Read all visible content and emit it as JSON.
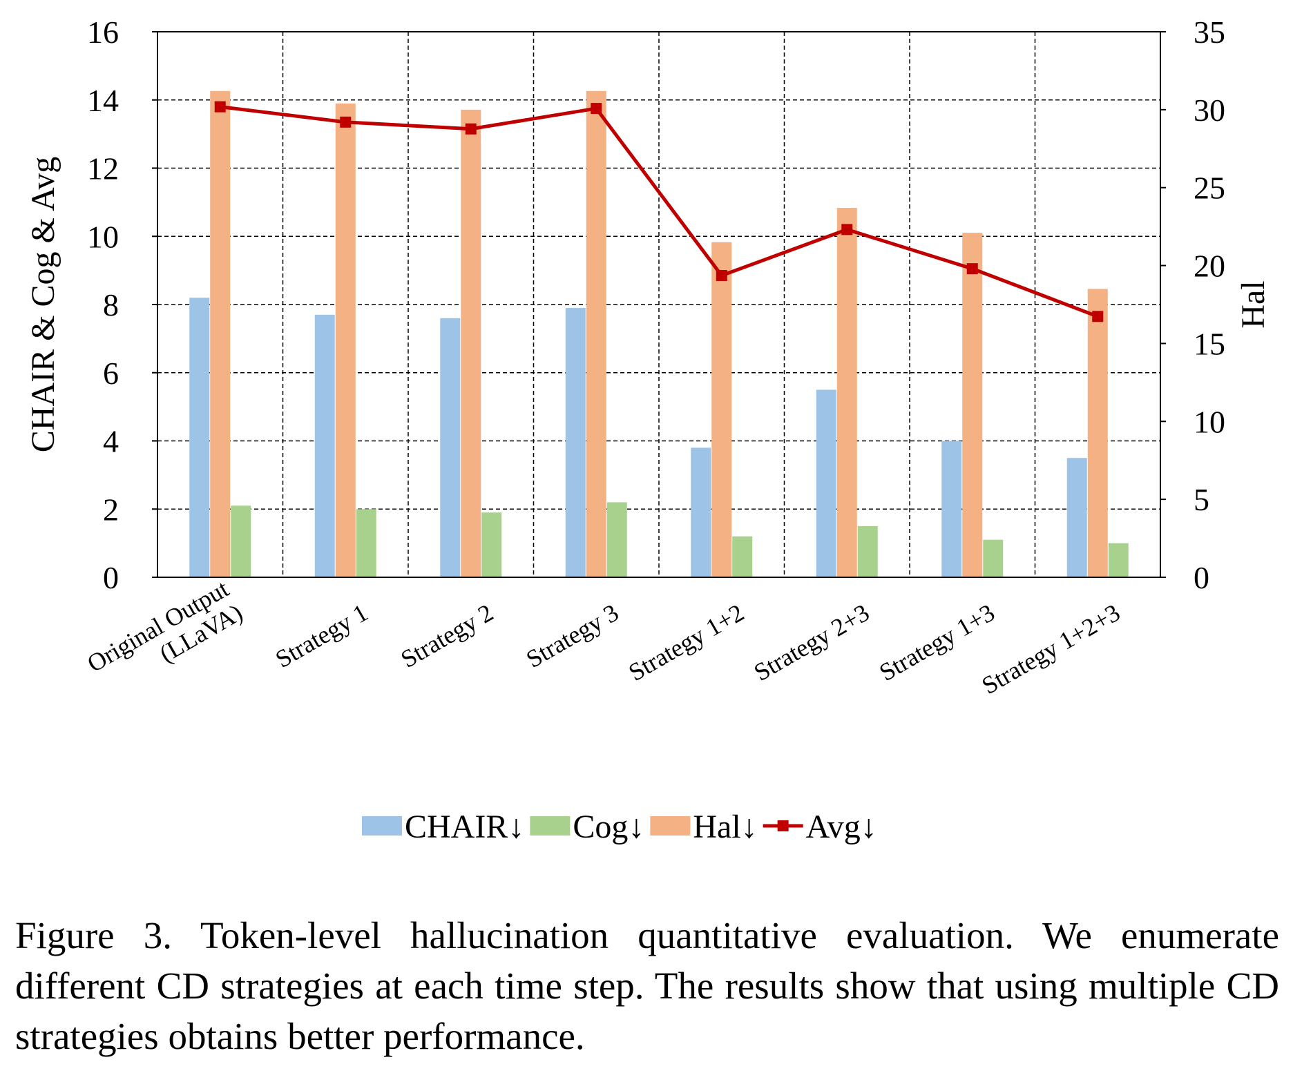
{
  "chart_data": {
    "type": "bar",
    "categories": [
      [
        "Original Output",
        "(LLaVA)"
      ],
      [
        "Strategy 1"
      ],
      [
        "Strategy 2"
      ],
      [
        "Strategy 3"
      ],
      [
        "Strategy 1+2"
      ],
      [
        "Strategy 2+3"
      ],
      [
        "Strategy 1+3"
      ],
      [
        "Strategy 1+2+3"
      ]
    ],
    "series": [
      {
        "name": "CHAIR↓",
        "kind": "bar",
        "axis": "left",
        "color": "#9dc3e6",
        "values": [
          8.2,
          7.7,
          7.6,
          7.9,
          3.8,
          5.5,
          4.0,
          3.5
        ]
      },
      {
        "name": "Cog↓",
        "kind": "bar",
        "axis": "left",
        "color": "#a9d18e",
        "values": [
          2.1,
          2.0,
          1.9,
          2.2,
          1.2,
          1.5,
          1.1,
          1.0
        ]
      },
      {
        "name": "Hal↓",
        "kind": "bar",
        "axis": "right",
        "color": "#f4b183",
        "values": [
          31.2,
          30.4,
          30.0,
          31.2,
          21.5,
          23.7,
          22.1,
          18.5
        ]
      },
      {
        "name": "Avg↓",
        "kind": "line",
        "axis": "left",
        "color": "#c00000",
        "values": [
          13.8,
          13.35,
          13.15,
          13.75,
          8.85,
          10.2,
          9.05,
          7.65
        ]
      }
    ],
    "legend_order": [
      0,
      1,
      2,
      3
    ],
    "ylabel": "CHAIR & Cog & Avg",
    "y2label": "Hal",
    "ylim": [
      0,
      16
    ],
    "yticks": [
      0,
      2,
      4,
      6,
      8,
      10,
      12,
      14,
      16
    ],
    "y2lim": [
      0,
      35
    ],
    "y2ticks": [
      0,
      5,
      10,
      15,
      20,
      25,
      30,
      35
    ],
    "grid": "dashed",
    "legend_position": "bottom"
  },
  "caption": "Figure 3.  Token-level hallucination quantitative evaluation.  We enumerate different CD strategies at each time step.  The results show that using multiple CD strategies obtains better performance."
}
